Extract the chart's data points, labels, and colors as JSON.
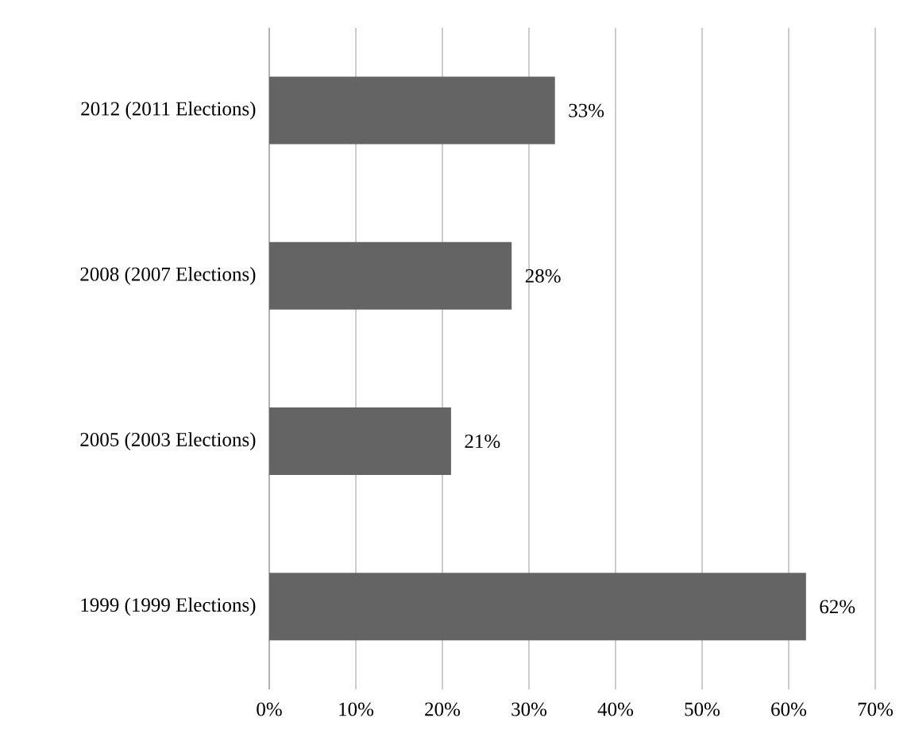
{
  "chart_data": {
    "type": "bar",
    "orientation": "horizontal",
    "categories": [
      "2012 (2011 Elections)",
      "2008 (2007 Elections)",
      "2005 (2003 Elections)",
      "1999 (1999 Elections)"
    ],
    "values": [
      33,
      28,
      21,
      62
    ],
    "value_labels": [
      "33%",
      "28%",
      "21%",
      "62%"
    ],
    "color": "#646464",
    "xlim": [
      0,
      70
    ],
    "xticks": [
      {
        "value": 0,
        "label": "0%"
      },
      {
        "value": 10,
        "label": "10%"
      },
      {
        "value": 20,
        "label": "20%"
      },
      {
        "value": 30,
        "label": "30%"
      },
      {
        "value": 40,
        "label": "40%"
      },
      {
        "value": 50,
        "label": "50%"
      },
      {
        "value": 60,
        "label": "60%"
      },
      {
        "value": 70,
        "label": "70%"
      }
    ],
    "grid": "x"
  }
}
